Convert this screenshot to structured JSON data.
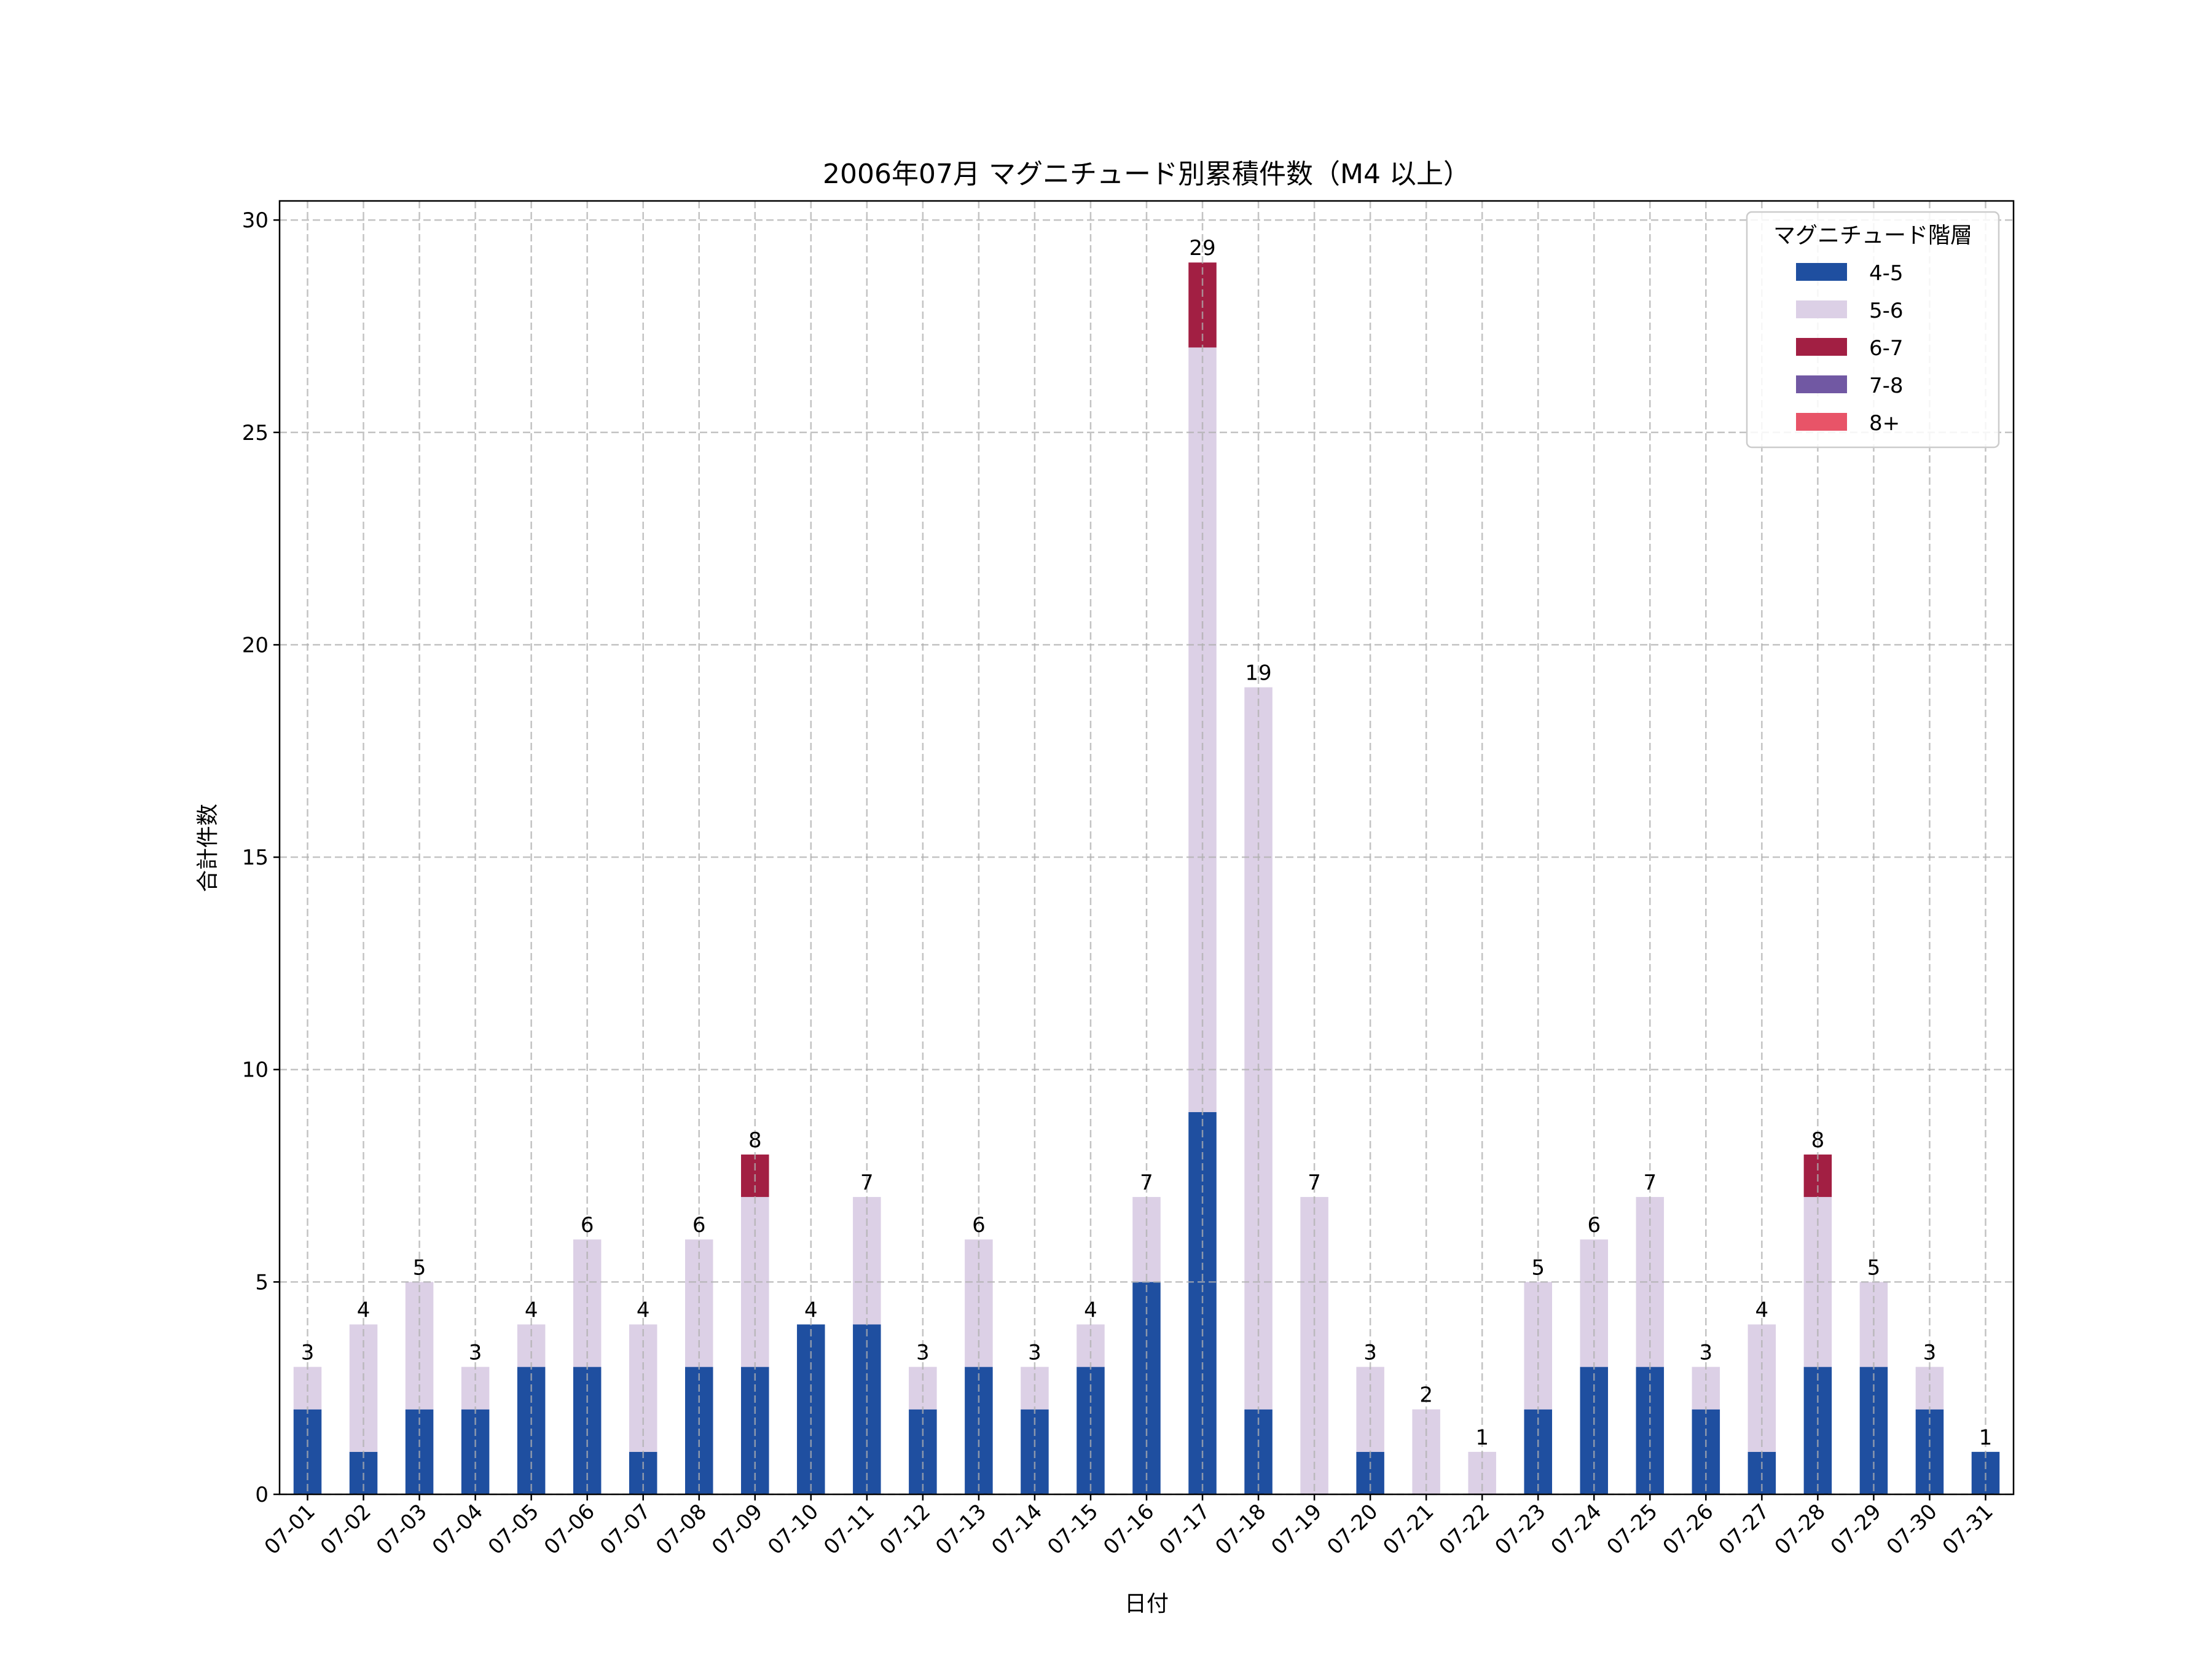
{
  "chart_data": {
    "type": "bar",
    "stacked": true,
    "title": "2006年07月 マグニチュード別累積件数（M4 以上）",
    "xlabel": "日付",
    "ylabel": "合計件数",
    "ylim": [
      0,
      30.45
    ],
    "yticks": [
      0,
      5,
      10,
      15,
      20,
      25,
      30
    ],
    "grid": true,
    "legend": {
      "title": "マグニチュード階層",
      "placement": "top-right"
    },
    "categories": [
      "07-01",
      "07-02",
      "07-03",
      "07-04",
      "07-05",
      "07-06",
      "07-07",
      "07-08",
      "07-09",
      "07-10",
      "07-11",
      "07-12",
      "07-13",
      "07-14",
      "07-15",
      "07-16",
      "07-17",
      "07-18",
      "07-19",
      "07-20",
      "07-21",
      "07-22",
      "07-23",
      "07-24",
      "07-25",
      "07-26",
      "07-27",
      "07-28",
      "07-29",
      "07-30",
      "07-31"
    ],
    "series": [
      {
        "name": "4-5",
        "color": "#1f4fa0",
        "values": [
          2,
          1,
          2,
          2,
          3,
          3,
          1,
          3,
          3,
          4,
          4,
          2,
          3,
          2,
          3,
          5,
          9,
          2,
          0,
          1,
          0,
          0,
          2,
          3,
          3,
          2,
          1,
          3,
          3,
          2,
          1
        ]
      },
      {
        "name": "5-6",
        "color": "#dcd0e6",
        "values": [
          1,
          3,
          3,
          1,
          1,
          3,
          3,
          3,
          4,
          0,
          3,
          1,
          3,
          1,
          1,
          2,
          18,
          17,
          7,
          2,
          2,
          1,
          3,
          3,
          4,
          1,
          3,
          4,
          2,
          1,
          0
        ]
      },
      {
        "name": "6-7",
        "color": "#a21f43",
        "values": [
          0,
          0,
          0,
          0,
          0,
          0,
          0,
          0,
          1,
          0,
          0,
          0,
          0,
          0,
          0,
          0,
          2,
          0,
          0,
          0,
          0,
          0,
          0,
          0,
          0,
          0,
          0,
          1,
          0,
          0,
          0
        ]
      },
      {
        "name": "7-8",
        "color": "#7158a3",
        "values": [
          0,
          0,
          0,
          0,
          0,
          0,
          0,
          0,
          0,
          0,
          0,
          0,
          0,
          0,
          0,
          0,
          0,
          0,
          0,
          0,
          0,
          0,
          0,
          0,
          0,
          0,
          0,
          0,
          0,
          0,
          0
        ]
      },
      {
        "name": "8+",
        "color": "#e85468",
        "values": [
          0,
          0,
          0,
          0,
          0,
          0,
          0,
          0,
          0,
          0,
          0,
          0,
          0,
          0,
          0,
          0,
          0,
          0,
          0,
          0,
          0,
          0,
          0,
          0,
          0,
          0,
          0,
          0,
          0,
          0,
          0
        ]
      }
    ],
    "totals": [
      3,
      4,
      5,
      3,
      4,
      6,
      4,
      6,
      8,
      4,
      7,
      3,
      6,
      3,
      4,
      7,
      29,
      19,
      7,
      3,
      2,
      1,
      5,
      6,
      7,
      3,
      4,
      8,
      5,
      3,
      1
    ]
  }
}
